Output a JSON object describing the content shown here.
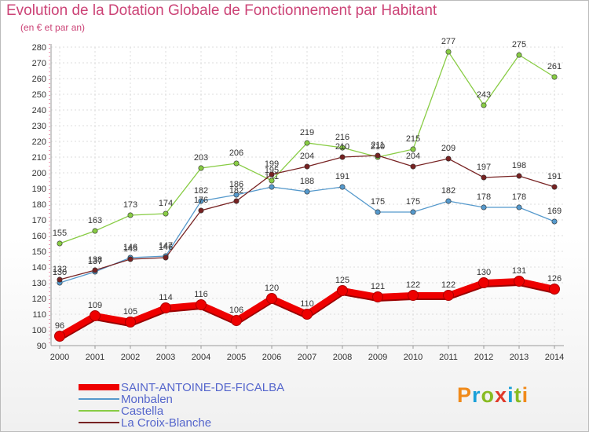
{
  "header": {
    "title": "Evolution de la Dotation Globale de Fonctionnement par Habitant",
    "subtitle": "(en € et par an)"
  },
  "logo": {
    "text": "Proxiti",
    "colors": [
      "#f08a1a",
      "#1aa0d8",
      "#88bb22",
      "#e03a2a",
      "#1aa0d8",
      "#88bb22",
      "#f08a1a"
    ]
  },
  "chart_data": {
    "type": "line",
    "title": "Evolution de la Dotation Globale de Fonctionnement par Habitant",
    "subtitle": "(en € et par an)",
    "x": [
      "2000",
      "2001",
      "2002",
      "2003",
      "2004",
      "2005",
      "2006",
      "2007",
      "2008",
      "2009",
      "2010",
      "2011",
      "2012",
      "2013",
      "2014"
    ],
    "ylim": [
      90,
      280
    ],
    "yticks": [
      90,
      100,
      110,
      120,
      130,
      140,
      150,
      160,
      170,
      180,
      190,
      200,
      210,
      220,
      230,
      240,
      250,
      260,
      270,
      280
    ],
    "grid": true,
    "legend_position": "bottom-left",
    "series": [
      {
        "name": "SAINT-ANTOINE-DE-FICALBA",
        "color": "#ee0000",
        "emphasis": true,
        "values": [
          96,
          109,
          105,
          114,
          116,
          106,
          120,
          110,
          125,
          121,
          122,
          122,
          130,
          131,
          126
        ]
      },
      {
        "name": "Monbalen",
        "color": "#5599cc",
        "emphasis": false,
        "values": [
          130,
          137,
          146,
          147,
          182,
          186,
          191,
          188,
          191,
          175,
          175,
          182,
          178,
          178,
          169
        ]
      },
      {
        "name": "Castella",
        "color": "#88cc44",
        "emphasis": false,
        "values": [
          155,
          163,
          173,
          174,
          203,
          206,
          195,
          219,
          216,
          210,
          215,
          277,
          243,
          275,
          261
        ]
      },
      {
        "name": "La Croix-Blanche",
        "color": "#772222",
        "emphasis": false,
        "values": [
          132,
          138,
          145,
          146,
          176,
          182,
          199,
          204,
          210,
          211,
          204,
          209,
          197,
          198,
          191
        ]
      }
    ]
  }
}
